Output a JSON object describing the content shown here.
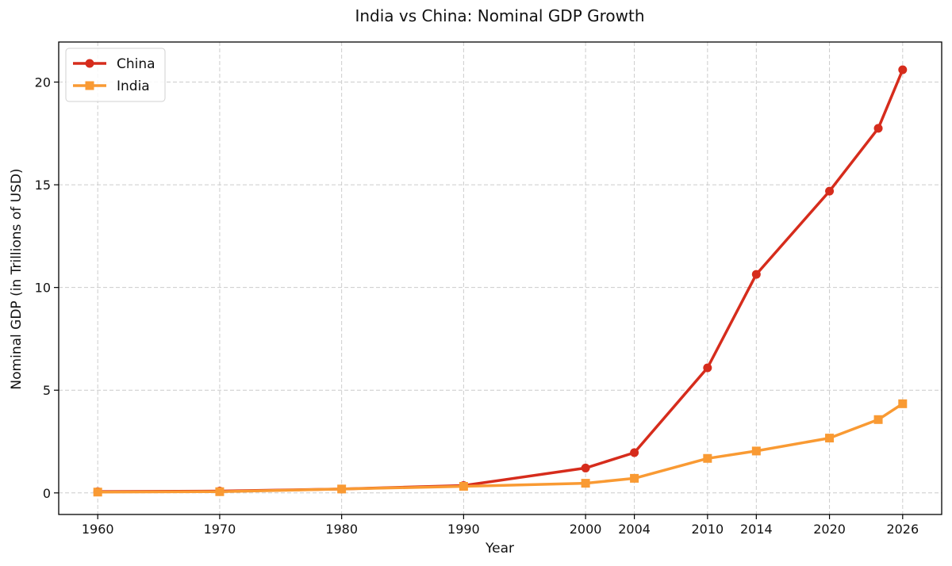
{
  "chart_data": {
    "type": "line",
    "title": "India vs China: Nominal GDP Growth",
    "xlabel": "Year",
    "ylabel": "Nominal GDP (in Trillions of USD)",
    "xlim": [
      1956.8,
      2029.2
    ],
    "ylim": [
      -1.05,
      21.95
    ],
    "xticks": [
      1960,
      1970,
      1980,
      1990,
      2000,
      2004,
      2010,
      2014,
      2020,
      2026
    ],
    "yticks": [
      0,
      5,
      10,
      15,
      20
    ],
    "grid": true,
    "legend_position": "top-left",
    "series": [
      {
        "name": "China",
        "color": "#d62c1c",
        "marker": "circle",
        "x": [
          1960,
          1970,
          1980,
          1990,
          2000,
          2004,
          2010,
          2014,
          2020,
          2024,
          2026
        ],
        "y": [
          0.06,
          0.09,
          0.19,
          0.36,
          1.21,
          1.96,
          6.09,
          10.64,
          14.69,
          17.75,
          20.6
        ]
      },
      {
        "name": "India",
        "color": "#f99a33",
        "marker": "square",
        "x": [
          1960,
          1970,
          1980,
          1990,
          2000,
          2004,
          2010,
          2014,
          2020,
          2024,
          2026
        ],
        "y": [
          0.04,
          0.06,
          0.19,
          0.32,
          0.47,
          0.71,
          1.68,
          2.04,
          2.67,
          3.57,
          4.34
        ]
      }
    ]
  }
}
